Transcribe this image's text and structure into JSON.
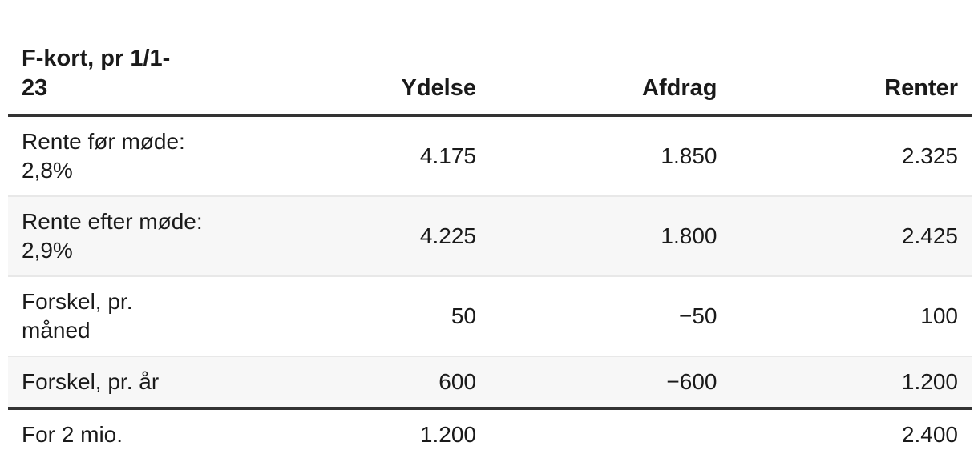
{
  "table": {
    "title": "F-kort, pr 1/1-\n23",
    "columns": {
      "ydelse": "Ydelse",
      "afdrag": "Afdrag",
      "renter": "Renter"
    },
    "rows": [
      {
        "label": "Rente før møde:\n2,8%",
        "ydelse": "4.175",
        "afdrag": "1.850",
        "renter": "2.325"
      },
      {
        "label": "Rente efter møde:\n2,9%",
        "ydelse": "4.225",
        "afdrag": "1.800",
        "renter": "2.425"
      },
      {
        "label": "Forskel, pr.\nmåned",
        "ydelse": "50",
        "afdrag": "−50",
        "renter": "100"
      },
      {
        "label": "Forskel, pr. år",
        "ydelse": "600",
        "afdrag": "−600",
        "renter": "1.200"
      },
      {
        "label": "For 2 mio.",
        "ydelse": "1.200",
        "afdrag": "",
        "renter": "2.400"
      }
    ],
    "colors": {
      "text": "#1a1a1a",
      "heavy_rule": "#333333",
      "row_separator": "#e8e8e8",
      "zebra_background": "#f7f7f7"
    }
  }
}
